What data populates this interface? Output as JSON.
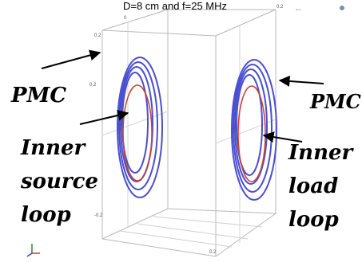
{
  "title": "D=8 cm and f=25 MHz",
  "labels": {
    "pmc_left": "PMC",
    "pmc_right": "PMC",
    "inner_source": [
      "Inner",
      "source",
      "loop"
    ],
    "inner_load": [
      "Inner",
      "load",
      "loop"
    ]
  },
  "ticks": {
    "left_top": "0.2",
    "left_mid": "0.2",
    "left_bottom": "-0.2",
    "top_center": "0",
    "right_top": "0.2",
    "bottom_mid": "0.2"
  },
  "colors": {
    "outer_rings": "#4a4fd0",
    "inner_loop": "#c8443c",
    "frame": "#b8b8b8",
    "text": "#000000"
  }
}
